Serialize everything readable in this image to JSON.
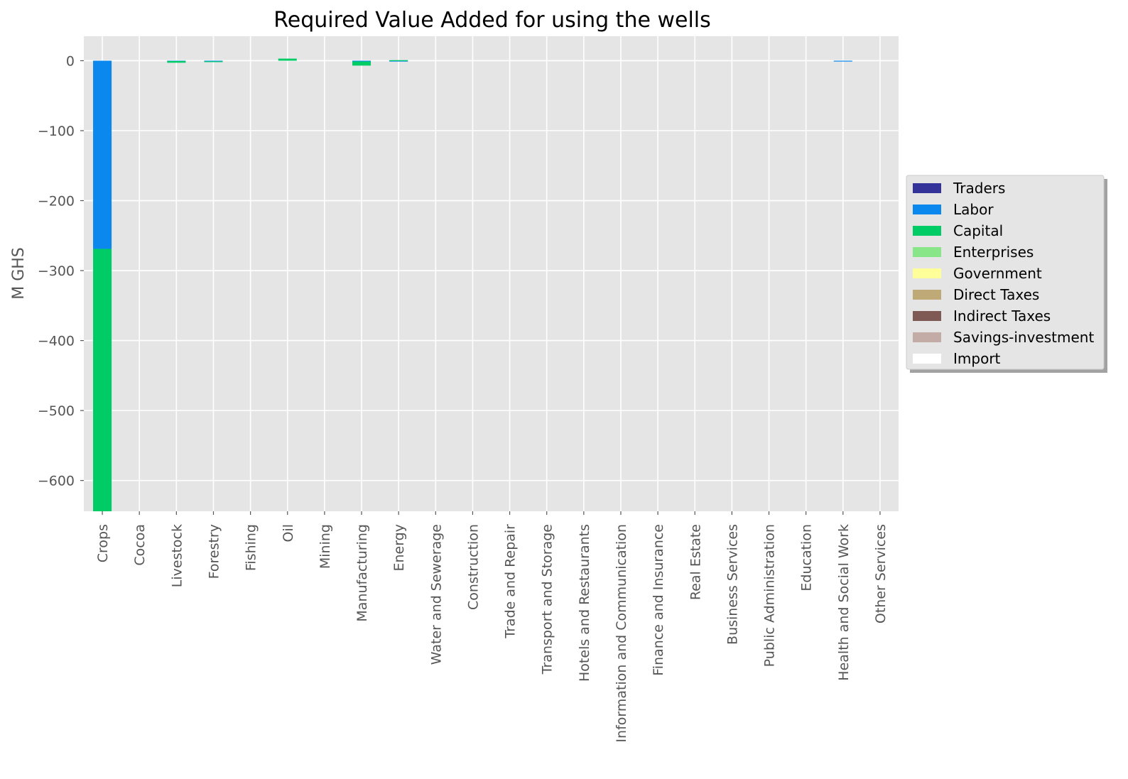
{
  "chart_data": {
    "type": "bar",
    "stacked": true,
    "title": "Required Value Added for using the wells",
    "xlabel": "",
    "ylabel": "M GHS",
    "ylim": [
      -644,
      35
    ],
    "yticks": [
      0,
      -100,
      -200,
      -300,
      -400,
      -500,
      -600
    ],
    "ytick_labels": [
      "0",
      "−100",
      "−200",
      "−300",
      "−400",
      "−500",
      "−600"
    ],
    "grid": true,
    "legend_position": "center-right, outside plot",
    "categories": [
      "Crops",
      "Cocoa",
      "Livestock",
      "Forestry",
      "Fishing",
      "Oil",
      "Mining",
      "Manufacturing",
      "Energy",
      "Water and Sewerage",
      "Construction",
      "Trade and Repair",
      "Transport and Storage",
      "Hotels and Restaurants",
      "Information and Communication",
      "Finance and Insurance",
      "Real Estate",
      "Business Services",
      "Public Administration",
      "Education",
      "Health and Social Work",
      "Other Services"
    ],
    "series": [
      {
        "name": "Traders",
        "color": "#333399",
        "values": [
          0,
          0,
          0,
          0,
          0,
          0,
          0,
          0,
          0,
          0,
          0,
          0,
          0,
          0,
          0,
          0,
          0,
          0,
          0,
          0,
          0,
          0
        ]
      },
      {
        "name": "Labor",
        "color": "#0a88ee",
        "values": [
          -269,
          0,
          -0.4,
          -0.8,
          0,
          0,
          0,
          -1,
          -0.3,
          0,
          0,
          0,
          0,
          0,
          0,
          0,
          0,
          0,
          0,
          0,
          -0.6,
          0
        ]
      },
      {
        "name": "Capital",
        "color": "#00cc66",
        "values": [
          -375,
          0,
          -2.5,
          -1,
          0,
          3,
          0,
          -6,
          0.8,
          0,
          0,
          0,
          0,
          0,
          0,
          0,
          0,
          0,
          0,
          0,
          0,
          0
        ]
      },
      {
        "name": "Enterprises",
        "color": "#88e688",
        "values": [
          0,
          0,
          0,
          0,
          0,
          0,
          0,
          0,
          0,
          0,
          0,
          0,
          0,
          0,
          0,
          0,
          0,
          0,
          0,
          0,
          0,
          0
        ]
      },
      {
        "name": "Government",
        "color": "#ffff99",
        "values": [
          0,
          0,
          0,
          0,
          0,
          0,
          0,
          0,
          0,
          0,
          0,
          0,
          0,
          0,
          0,
          0,
          0,
          0,
          0,
          0,
          0,
          0
        ]
      },
      {
        "name": "Direct Taxes",
        "color": "#bfaa77",
        "values": [
          0,
          0,
          0,
          0,
          0,
          0,
          0,
          0,
          0,
          0,
          0,
          0,
          0,
          0,
          0,
          0,
          0,
          0,
          0,
          0,
          0,
          0
        ]
      },
      {
        "name": "Indirect Taxes",
        "color": "#7f5a55",
        "values": [
          0,
          0,
          0,
          0,
          0,
          0,
          0,
          0,
          0,
          0,
          0,
          0,
          0,
          0,
          0,
          0,
          0,
          0,
          0,
          0,
          0,
          0
        ]
      },
      {
        "name": "Savings-investment",
        "color": "#c4aca6",
        "values": [
          0,
          0,
          0,
          0,
          0,
          0,
          0,
          0,
          0,
          0,
          0,
          0,
          0,
          0,
          0,
          0,
          0,
          0,
          0,
          0,
          0,
          0
        ]
      },
      {
        "name": "Import",
        "color": "#ffffff",
        "values": [
          0,
          0,
          0,
          0,
          0,
          0,
          0,
          0,
          0,
          0,
          0,
          0,
          0,
          0,
          0,
          0,
          0,
          0,
          0,
          0,
          0,
          0
        ]
      }
    ],
    "colors": {
      "plot_background": "#e5e5e5",
      "grid": "#ffffff",
      "legend_background": "#e5e5e5"
    }
  }
}
